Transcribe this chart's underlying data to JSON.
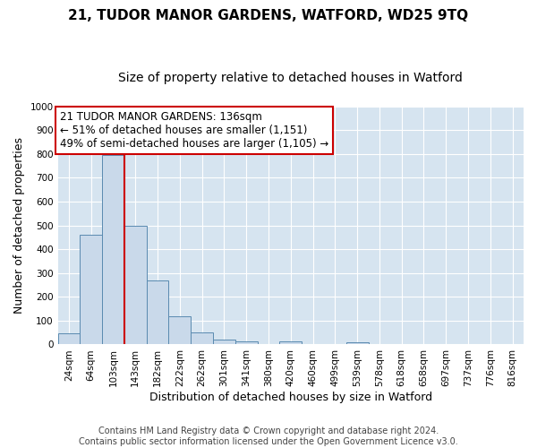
{
  "title": "21, TUDOR MANOR GARDENS, WATFORD, WD25 9TQ",
  "subtitle": "Size of property relative to detached houses in Watford",
  "xlabel": "Distribution of detached houses by size in Watford",
  "ylabel": "Number of detached properties",
  "categories": [
    "24sqm",
    "64sqm",
    "103sqm",
    "143sqm",
    "182sqm",
    "222sqm",
    "262sqm",
    "301sqm",
    "341sqm",
    "380sqm",
    "420sqm",
    "460sqm",
    "499sqm",
    "539sqm",
    "578sqm",
    "618sqm",
    "658sqm",
    "697sqm",
    "737sqm",
    "776sqm",
    "816sqm"
  ],
  "values": [
    47,
    460,
    795,
    500,
    268,
    120,
    50,
    20,
    12,
    0,
    12,
    0,
    0,
    8,
    0,
    0,
    0,
    0,
    0,
    0,
    0
  ],
  "bar_color": "#c9d9ea",
  "bar_edge_color": "#5a8ab0",
  "property_line_color": "#cc0000",
  "annotation_line1": "21 TUDOR MANOR GARDENS: 136sqm",
  "annotation_line2": "← 51% of detached houses are smaller (1,151)",
  "annotation_line3": "49% of semi-detached houses are larger (1,105) →",
  "annotation_box_color": "#ffffff",
  "annotation_box_edge_color": "#cc0000",
  "ylim": [
    0,
    1000
  ],
  "yticks": [
    0,
    100,
    200,
    300,
    400,
    500,
    600,
    700,
    800,
    900,
    1000
  ],
  "grid_color": "#ffffff",
  "plot_background_color": "#d6e4f0",
  "figure_background_color": "#ffffff",
  "footer": "Contains HM Land Registry data © Crown copyright and database right 2024.\nContains public sector information licensed under the Open Government Licence v3.0.",
  "title_fontsize": 11,
  "subtitle_fontsize": 10,
  "xlabel_fontsize": 9,
  "ylabel_fontsize": 9,
  "tick_fontsize": 7.5,
  "annotation_fontsize": 8.5,
  "footer_fontsize": 7
}
